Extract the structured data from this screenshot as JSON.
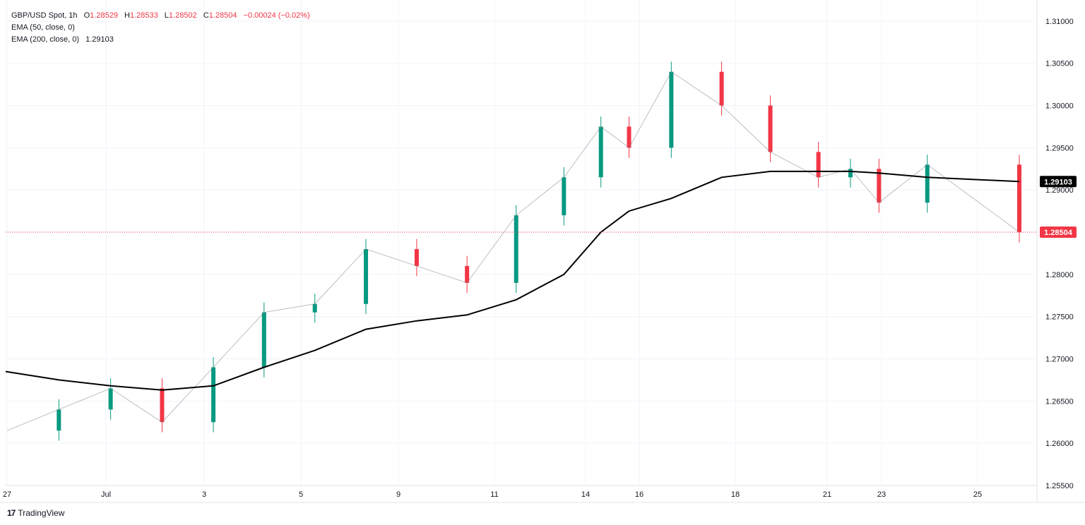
{
  "legend": {
    "symbol": "GBP/USD Spot, 1h",
    "open_label": "O",
    "open": "1.28529",
    "high_label": "H",
    "high": "1.28533",
    "low_label": "L",
    "low": "1.28502",
    "close_label": "C",
    "close": "1.28504",
    "change": "−0.00024 (−0.02%)",
    "ema50_label": "EMA (50, close, 0)",
    "ema200_label": "EMA (200, close, 0)",
    "ema200_value": "1.29103"
  },
  "brand": {
    "name": "TradingView"
  },
  "colors": {
    "up": "#089981",
    "down": "#f23645",
    "ema": "#000000",
    "grid": "#f0f3fa",
    "text": "#131722"
  },
  "chart_data": {
    "type": "line",
    "title": "GBP/USD Spot, 1h",
    "xlabel": "",
    "ylabel": "",
    "ylim": [
      1.255,
      1.3125
    ],
    "grid": true,
    "y_ticks": [
      "1.25500",
      "1.26000",
      "1.26500",
      "1.27000",
      "1.27500",
      "1.28000",
      "1.28500",
      "1.29000",
      "1.29500",
      "1.30000",
      "1.30500",
      "1.31000"
    ],
    "x_ticks": [
      "27",
      "Jul",
      "3",
      "5",
      "9",
      "11",
      "14",
      "16",
      "18",
      "21",
      "23",
      "25"
    ],
    "last_price_label": "1.28504",
    "ema_label": "1.29103",
    "series": [
      {
        "name": "GBP/USD Spot",
        "x": [
          "Jun 27",
          "Jun 28",
          "Jul 1",
          "Jul 2",
          "Jul 3",
          "Jul 4",
          "Jul 5",
          "Jul 8",
          "Jul 9",
          "Jul 10",
          "Jul 11",
          "Jul 12",
          "Jul 15",
          "Jul 16",
          "Jul 17",
          "Jul 18",
          "Jul 19",
          "Jul 22",
          "Jul 23",
          "Jul 24",
          "Jul 25",
          "Jul 26"
        ],
        "values": [
          1.2615,
          1.264,
          1.2665,
          1.2625,
          1.269,
          1.2755,
          1.2765,
          1.283,
          1.281,
          1.279,
          1.287,
          1.2915,
          1.2975,
          1.295,
          1.304,
          1.3,
          1.2945,
          1.2915,
          1.2925,
          1.2885,
          1.293,
          1.285
        ]
      },
      {
        "name": "EMA (200, close, 0)",
        "x": [
          "Jun 27",
          "Jun 28",
          "Jul 1",
          "Jul 2",
          "Jul 3",
          "Jul 4",
          "Jul 5",
          "Jul 8",
          "Jul 9",
          "Jul 10",
          "Jul 11",
          "Jul 12",
          "Jul 15",
          "Jul 16",
          "Jul 17",
          "Jul 18",
          "Jul 19",
          "Jul 22",
          "Jul 23",
          "Jul 24",
          "Jul 25",
          "Jul 26"
        ],
        "values": [
          1.2685,
          1.2675,
          1.2668,
          1.2663,
          1.2668,
          1.269,
          1.271,
          1.2735,
          1.2745,
          1.2752,
          1.277,
          1.28,
          1.285,
          1.2875,
          1.289,
          1.2915,
          1.2922,
          1.2922,
          1.2922,
          1.292,
          1.2915,
          1.291
        ]
      }
    ]
  }
}
